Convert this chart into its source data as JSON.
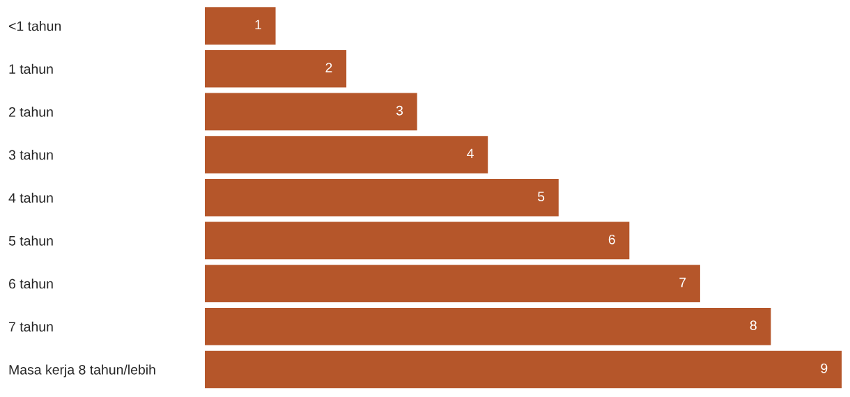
{
  "chart_data": {
    "type": "bar",
    "orientation": "horizontal",
    "categories": [
      "<1 tahun",
      "1 tahun",
      "2 tahun",
      "3 tahun",
      "4 tahun",
      "5 tahun",
      "6 tahun",
      "7 tahun",
      "Masa kerja 8 tahun/lebih"
    ],
    "values": [
      1,
      2,
      3,
      4,
      5,
      6,
      7,
      8,
      9
    ],
    "color": "#b5562a",
    "xlim": [
      0,
      9
    ],
    "data_labels": true,
    "tick_labels": "y",
    "grid": false,
    "legend": false
  }
}
